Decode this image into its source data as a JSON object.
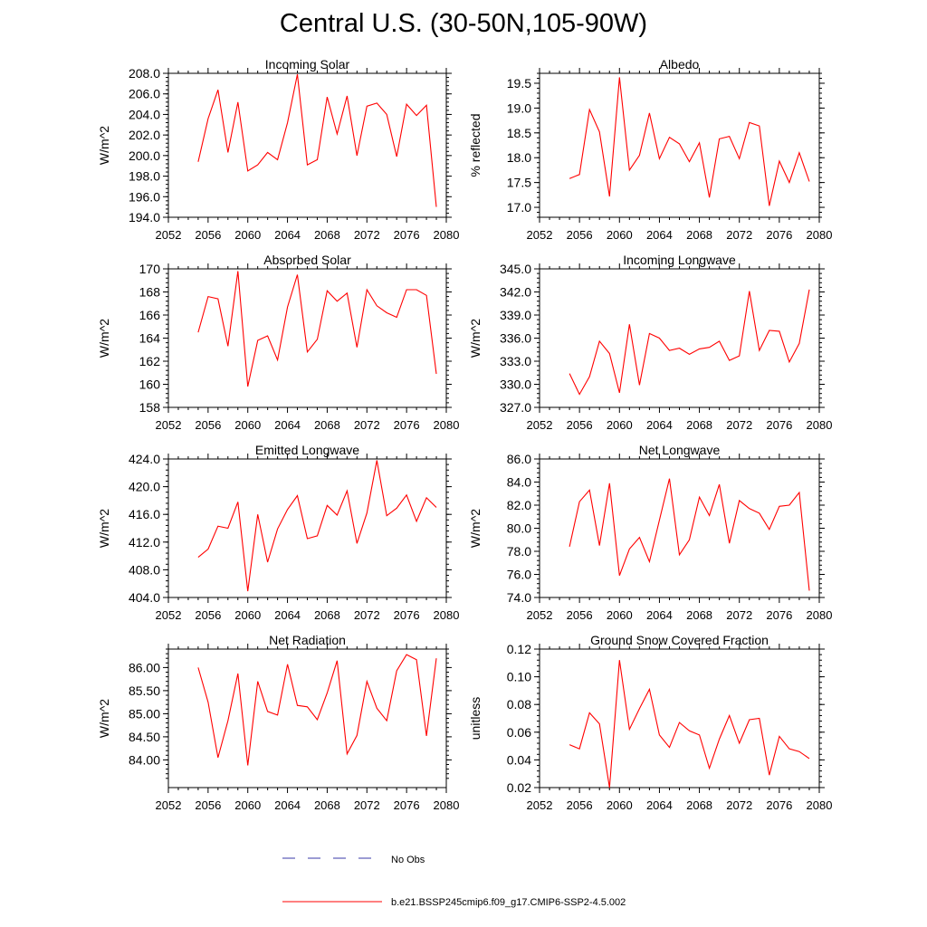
{
  "title": "Central U.S. (30-50N,105-90W)",
  "colors": {
    "model": "#ff0000",
    "obs": "#3a3aa8",
    "axis": "#000000"
  },
  "legend": [
    {
      "label": "No Obs",
      "style": "dashed"
    },
    {
      "label": "b.e21.BSSP245cmip6.f09_g17.CMIP6-SSP2-4.5.002",
      "style": "solid"
    }
  ],
  "chart_data": [
    {
      "type": "line",
      "title": "Incoming Solar",
      "ylabel": "W/m^2",
      "xlim": [
        2052,
        2080
      ],
      "ylim": [
        194,
        208
      ],
      "xticks": [
        "2052",
        "2056",
        "2060",
        "2064",
        "2068",
        "2072",
        "2076",
        "2080"
      ],
      "yticks": [
        "194.0",
        "196.0",
        "198.0",
        "200.0",
        "202.0",
        "204.0",
        "206.0",
        "208.0"
      ],
      "x": [
        2055,
        2056,
        2057,
        2058,
        2059,
        2060,
        2061,
        2062,
        2063,
        2064,
        2065,
        2066,
        2067,
        2068,
        2069,
        2070,
        2071,
        2072,
        2073,
        2074,
        2075,
        2076,
        2077,
        2078,
        2079
      ],
      "series": [
        {
          "name": "b.e21.BSSP245cmip6.f09_g17.CMIP6-SSP2-4.5.002",
          "values": [
            199.4,
            203.6,
            206.4,
            200.3,
            205.2,
            198.5,
            199.1,
            200.3,
            199.6,
            203.2,
            207.9,
            199.1,
            199.6,
            205.7,
            202.1,
            205.8,
            200.0,
            204.8,
            205.1,
            204.0,
            199.9,
            205.0,
            203.9,
            204.9,
            195.0
          ]
        }
      ]
    },
    {
      "type": "line",
      "title": "Albedo",
      "ylabel": "% reflected",
      "xlim": [
        2052,
        2080
      ],
      "ylim": [
        16.8,
        19.7
      ],
      "xticks": [
        "2052",
        "2056",
        "2060",
        "2064",
        "2068",
        "2072",
        "2076",
        "2080"
      ],
      "yticks": [
        "17.0",
        "17.5",
        "18.0",
        "18.5",
        "19.0",
        "19.5"
      ],
      "x": [
        2055,
        2056,
        2057,
        2058,
        2059,
        2060,
        2061,
        2062,
        2063,
        2064,
        2065,
        2066,
        2067,
        2068,
        2069,
        2070,
        2071,
        2072,
        2073,
        2074,
        2075,
        2076,
        2077,
        2078,
        2079
      ],
      "series": [
        {
          "name": "b.e21.BSSP245cmip6.f09_g17.CMIP6-SSP2-4.5.002",
          "values": [
            17.58,
            17.66,
            18.97,
            18.52,
            17.22,
            19.62,
            17.75,
            18.05,
            18.9,
            17.98,
            18.41,
            18.28,
            17.92,
            18.3,
            17.2,
            18.38,
            18.43,
            17.98,
            18.71,
            18.64,
            17.03,
            17.93,
            17.5,
            18.1,
            17.52
          ]
        }
      ]
    },
    {
      "type": "line",
      "title": "Absorbed Solar",
      "ylabel": "W/m^2",
      "xlim": [
        2052,
        2080
      ],
      "ylim": [
        158,
        170
      ],
      "xticks": [
        "2052",
        "2056",
        "2060",
        "2064",
        "2068",
        "2072",
        "2076",
        "2080"
      ],
      "yticks": [
        "158",
        "160",
        "162",
        "164",
        "166",
        "168",
        "170"
      ],
      "x": [
        2055,
        2056,
        2057,
        2058,
        2059,
        2060,
        2061,
        2062,
        2063,
        2064,
        2065,
        2066,
        2067,
        2068,
        2069,
        2070,
        2071,
        2072,
        2073,
        2074,
        2075,
        2076,
        2077,
        2078,
        2079
      ],
      "series": [
        {
          "name": "b.e21.BSSP245cmip6.f09_g17.CMIP6-SSP2-4.5.002",
          "values": [
            164.5,
            167.6,
            167.4,
            163.3,
            169.8,
            159.8,
            163.8,
            164.2,
            162.1,
            166.7,
            169.5,
            162.8,
            163.9,
            168.1,
            167.2,
            167.9,
            163.2,
            168.2,
            166.8,
            166.2,
            165.8,
            168.2,
            168.2,
            167.7,
            160.9
          ]
        }
      ]
    },
    {
      "type": "line",
      "title": "Incoming Longwave",
      "ylabel": "W/m^2",
      "xlim": [
        2052,
        2080
      ],
      "ylim": [
        327,
        345
      ],
      "xticks": [
        "2052",
        "2056",
        "2060",
        "2064",
        "2068",
        "2072",
        "2076",
        "2080"
      ],
      "yticks": [
        "327.0",
        "330.0",
        "333.0",
        "336.0",
        "339.0",
        "342.0",
        "345.0"
      ],
      "x": [
        2055,
        2056,
        2057,
        2058,
        2059,
        2060,
        2061,
        2062,
        2063,
        2064,
        2065,
        2066,
        2067,
        2068,
        2069,
        2070,
        2071,
        2072,
        2073,
        2074,
        2075,
        2076,
        2077,
        2078,
        2079
      ],
      "series": [
        {
          "name": "b.e21.BSSP245cmip6.f09_g17.CMIP6-SSP2-4.5.002",
          "values": [
            331.4,
            328.7,
            331.0,
            335.6,
            334.0,
            328.9,
            337.8,
            329.9,
            336.6,
            336.0,
            334.4,
            334.7,
            333.9,
            334.6,
            334.8,
            335.6,
            333.1,
            333.7,
            342.1,
            334.4,
            337.0,
            336.9,
            332.9,
            335.3,
            342.3
          ]
        }
      ]
    },
    {
      "type": "line",
      "title": "Emitted Longwave",
      "ylabel": "W/m^2",
      "xlim": [
        2052,
        2080
      ],
      "ylim": [
        404,
        424
      ],
      "xticks": [
        "2052",
        "2056",
        "2060",
        "2064",
        "2068",
        "2072",
        "2076",
        "2080"
      ],
      "yticks": [
        "404.0",
        "408.0",
        "412.0",
        "416.0",
        "420.0",
        "424.0"
      ],
      "x": [
        2055,
        2056,
        2057,
        2058,
        2059,
        2060,
        2061,
        2062,
        2063,
        2064,
        2065,
        2066,
        2067,
        2068,
        2069,
        2070,
        2071,
        2072,
        2073,
        2074,
        2075,
        2076,
        2077,
        2078,
        2079
      ],
      "series": [
        {
          "name": "b.e21.BSSP245cmip6.f09_g17.CMIP6-SSP2-4.5.002",
          "values": [
            409.8,
            411.0,
            414.3,
            414.0,
            417.8,
            404.9,
            416.0,
            409.1,
            413.9,
            416.7,
            418.7,
            412.5,
            412.9,
            417.3,
            415.9,
            419.4,
            411.8,
            416.2,
            423.8,
            415.8,
            416.9,
            418.8,
            415.0,
            418.4,
            417.0
          ]
        }
      ]
    },
    {
      "type": "line",
      "title": "Net Longwave",
      "ylabel": "W/m^2",
      "xlim": [
        2052,
        2080
      ],
      "ylim": [
        74,
        86
      ],
      "xticks": [
        "2052",
        "2056",
        "2060",
        "2064",
        "2068",
        "2072",
        "2076",
        "2080"
      ],
      "yticks": [
        "74.0",
        "76.0",
        "78.0",
        "80.0",
        "82.0",
        "84.0",
        "86.0"
      ],
      "x": [
        2055,
        2056,
        2057,
        2058,
        2059,
        2060,
        2061,
        2062,
        2063,
        2064,
        2065,
        2066,
        2067,
        2068,
        2069,
        2070,
        2071,
        2072,
        2073,
        2074,
        2075,
        2076,
        2077,
        2078,
        2079
      ],
      "series": [
        {
          "name": "b.e21.BSSP245cmip6.f09_g17.CMIP6-SSP2-4.5.002",
          "values": [
            78.4,
            82.3,
            83.3,
            78.5,
            83.9,
            75.9,
            78.2,
            79.2,
            77.1,
            80.7,
            84.3,
            77.7,
            79.0,
            82.7,
            81.1,
            83.8,
            78.7,
            82.4,
            81.7,
            81.3,
            79.9,
            81.9,
            82.0,
            83.1,
            74.6
          ]
        }
      ]
    },
    {
      "type": "line",
      "title": "Net Radiation",
      "ylabel": "W/m^2",
      "xlim": [
        2052,
        2080
      ],
      "ylim": [
        83.4,
        86.4
      ],
      "xticks": [
        "2052",
        "2056",
        "2060",
        "2064",
        "2068",
        "2072",
        "2076",
        "2080"
      ],
      "yticks": [
        "84.00",
        "84.50",
        "85.00",
        "85.50",
        "86.00"
      ],
      "x": [
        2055,
        2056,
        2057,
        2058,
        2059,
        2060,
        2061,
        2062,
        2063,
        2064,
        2065,
        2066,
        2067,
        2068,
        2069,
        2070,
        2071,
        2072,
        2073,
        2074,
        2075,
        2076,
        2077,
        2078,
        2079
      ],
      "series": [
        {
          "name": "b.e21.BSSP245cmip6.f09_g17.CMIP6-SSP2-4.5.002",
          "values": [
            86.0,
            85.25,
            84.05,
            84.85,
            85.87,
            83.88,
            85.7,
            85.05,
            84.97,
            86.07,
            85.18,
            85.15,
            84.87,
            85.45,
            86.15,
            84.13,
            84.53,
            85.7,
            85.12,
            84.85,
            85.93,
            86.28,
            86.17,
            84.52,
            86.2
          ]
        }
      ]
    },
    {
      "type": "line",
      "title": "Ground Snow Covered Fraction",
      "ylabel": "unitless",
      "xlim": [
        2052,
        2080
      ],
      "ylim": [
        0.02,
        0.12
      ],
      "xticks": [
        "2052",
        "2056",
        "2060",
        "2064",
        "2068",
        "2072",
        "2076",
        "2080"
      ],
      "yticks": [
        "0.02",
        "0.04",
        "0.06",
        "0.08",
        "0.10",
        "0.12"
      ],
      "x": [
        2055,
        2056,
        2057,
        2058,
        2059,
        2060,
        2061,
        2062,
        2063,
        2064,
        2065,
        2066,
        2067,
        2068,
        2069,
        2070,
        2071,
        2072,
        2073,
        2074,
        2075,
        2076,
        2077,
        2078,
        2079
      ],
      "series": [
        {
          "name": "b.e21.BSSP245cmip6.f09_g17.CMIP6-SSP2-4.5.002",
          "values": [
            0.051,
            0.048,
            0.074,
            0.066,
            0.02,
            0.112,
            0.062,
            0.077,
            0.091,
            0.058,
            0.049,
            0.067,
            0.061,
            0.058,
            0.034,
            0.055,
            0.072,
            0.052,
            0.069,
            0.07,
            0.029,
            0.057,
            0.048,
            0.046,
            0.041
          ]
        }
      ]
    }
  ]
}
